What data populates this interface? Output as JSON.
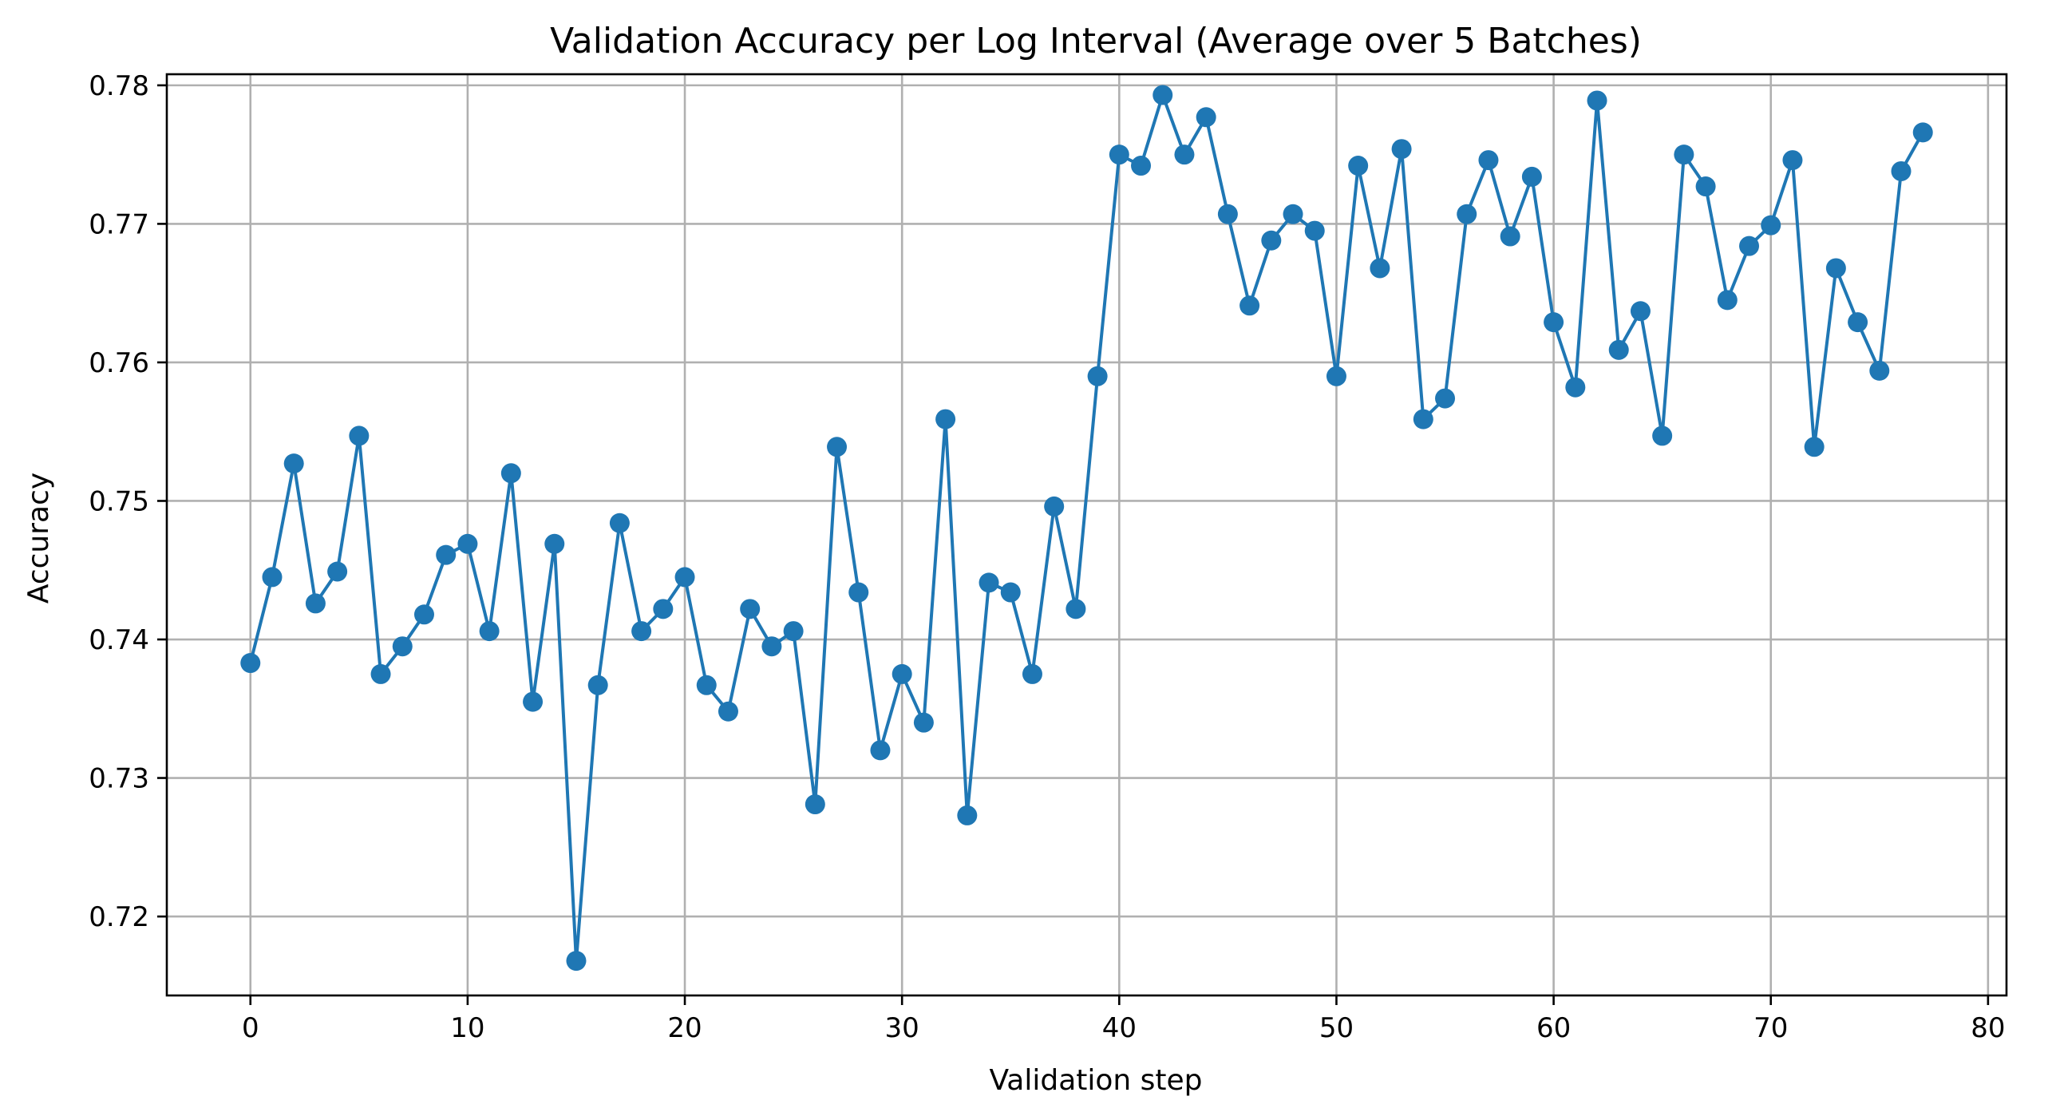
{
  "chart_data": {
    "type": "line",
    "title": "Validation Accuracy per Log Interval (Average over 5 Batches)",
    "xlabel": "Validation step",
    "ylabel": "Accuracy",
    "xlim": [
      -3.85,
      80.85
    ],
    "ylim": [
      0.7143,
      0.7808
    ],
    "xticks": [
      0,
      10,
      20,
      30,
      40,
      50,
      60,
      70,
      80
    ],
    "xtick_labels": [
      "0",
      "10",
      "20",
      "30",
      "40",
      "50",
      "60",
      "70",
      "80"
    ],
    "yticks": [
      0.72,
      0.73,
      0.74,
      0.75,
      0.76,
      0.77,
      0.78
    ],
    "ytick_labels": [
      "0.72",
      "0.73",
      "0.74",
      "0.75",
      "0.76",
      "0.77",
      "0.78"
    ],
    "grid": true,
    "marker": "circle",
    "color": "#1f77b4",
    "x": [
      0,
      1,
      2,
      3,
      4,
      5,
      6,
      7,
      8,
      9,
      10,
      11,
      12,
      13,
      14,
      15,
      16,
      17,
      18,
      19,
      20,
      21,
      22,
      23,
      24,
      25,
      26,
      27,
      28,
      29,
      30,
      31,
      32,
      33,
      34,
      35,
      36,
      37,
      38,
      39,
      40,
      41,
      42,
      43,
      44,
      45,
      46,
      47,
      48,
      49,
      50,
      51,
      52,
      53,
      54,
      55,
      56,
      57,
      58,
      59,
      60,
      61,
      62,
      63,
      64,
      65,
      66,
      67,
      68,
      69,
      70,
      71,
      72,
      73,
      74,
      75,
      76,
      77
    ],
    "y": [
      0.7383,
      0.7445,
      0.7527,
      0.7426,
      0.7449,
      0.7547,
      0.7375,
      0.7395,
      0.7418,
      0.7461,
      0.7469,
      0.7406,
      0.752,
      0.7355,
      0.7469,
      0.7168,
      0.7367,
      0.7484,
      0.7406,
      0.7422,
      0.7445,
      0.7367,
      0.7348,
      0.7422,
      0.7395,
      0.7406,
      0.7281,
      0.7539,
      0.7434,
      0.732,
      0.7375,
      0.734,
      0.7559,
      0.7273,
      0.7441,
      0.7434,
      0.7375,
      0.7496,
      0.7422,
      0.759,
      0.775,
      0.7742,
      0.7793,
      0.775,
      0.7777,
      0.7707,
      0.7641,
      0.7688,
      0.7707,
      0.7695,
      0.759,
      0.7742,
      0.7668,
      0.7754,
      0.7559,
      0.7574,
      0.7707,
      0.7746,
      0.7691,
      0.7734,
      0.7629,
      0.7582,
      0.7789,
      0.7609,
      0.7637,
      0.7547,
      0.775,
      0.7727,
      0.7645,
      0.7684,
      0.7699,
      0.7746,
      0.7539,
      0.7668,
      0.7629,
      0.7594,
      0.7738,
      0.7766
    ]
  }
}
